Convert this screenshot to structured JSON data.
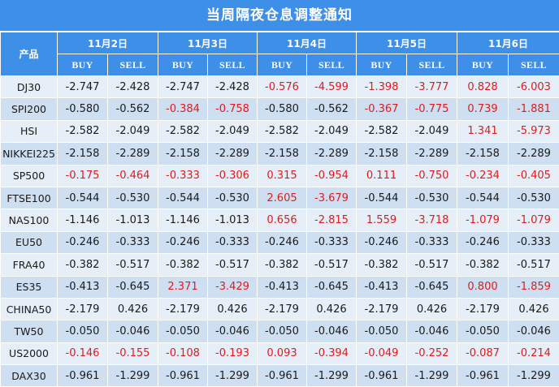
{
  "title": "当周隔夜仓息调整通知",
  "header": {
    "product_label": "产品",
    "buy_label": "BUY",
    "sell_label": "SELL",
    "dates": [
      "11月2日",
      "11月3日",
      "11月4日",
      "11月5日",
      "11月6日"
    ]
  },
  "colors": {
    "header_bg": "#3d8fe8",
    "row_light": "#e6eef8",
    "row_dark": "#cfdff2",
    "highlight_text": "#e31a1a",
    "normal_text": "#1a1a1a"
  },
  "rows": [
    {
      "symbol": "DJ30",
      "values": [
        "-2.747",
        "-2.428",
        "-2.747",
        "-2.428",
        "-0.576",
        "-4.599",
        "-1.398",
        "-3.777",
        "0.828",
        "-6.003"
      ],
      "highlight": [
        false,
        false,
        false,
        false,
        true,
        true,
        true,
        true,
        true,
        true
      ]
    },
    {
      "symbol": "SPI200",
      "values": [
        "-0.580",
        "-0.562",
        "-0.384",
        "-0.758",
        "-0.580",
        "-0.562",
        "-0.367",
        "-0.775",
        "0.739",
        "-1.881"
      ],
      "highlight": [
        false,
        false,
        true,
        true,
        false,
        false,
        true,
        true,
        true,
        true
      ]
    },
    {
      "symbol": "HSI",
      "values": [
        "-2.582",
        "-2.049",
        "-2.582",
        "-2.049",
        "-2.582",
        "-2.049",
        "-2.582",
        "-2.049",
        "1.341",
        "-5.973"
      ],
      "highlight": [
        false,
        false,
        false,
        false,
        false,
        false,
        false,
        false,
        true,
        true
      ]
    },
    {
      "symbol": "NIKKEI225",
      "values": [
        "-2.158",
        "-2.289",
        "-2.158",
        "-2.289",
        "-2.158",
        "-2.289",
        "-2.158",
        "-2.289",
        "-2.158",
        "-2.289"
      ],
      "highlight": [
        false,
        false,
        false,
        false,
        false,
        false,
        false,
        false,
        false,
        false
      ]
    },
    {
      "symbol": "SP500",
      "values": [
        "-0.175",
        "-0.464",
        "-0.333",
        "-0.306",
        "0.315",
        "-0.954",
        "0.111",
        "-0.750",
        "-0.234",
        "-0.405"
      ],
      "highlight": [
        true,
        true,
        true,
        true,
        true,
        true,
        true,
        true,
        true,
        true
      ]
    },
    {
      "symbol": "FTSE100",
      "values": [
        "-0.544",
        "-0.530",
        "-0.544",
        "-0.530",
        "2.605",
        "-3.679",
        "-0.544",
        "-0.530",
        "-0.544",
        "-0.530"
      ],
      "highlight": [
        false,
        false,
        false,
        false,
        true,
        true,
        false,
        false,
        false,
        false
      ]
    },
    {
      "symbol": "NAS100",
      "values": [
        "-1.146",
        "-1.013",
        "-1.146",
        "-1.013",
        "0.656",
        "-2.815",
        "1.559",
        "-3.718",
        "-1.079",
        "-1.079"
      ],
      "highlight": [
        false,
        false,
        false,
        false,
        true,
        true,
        true,
        true,
        true,
        true
      ]
    },
    {
      "symbol": "EU50",
      "values": [
        "-0.246",
        "-0.333",
        "-0.246",
        "-0.333",
        "-0.246",
        "-0.333",
        "-0.246",
        "-0.333",
        "-0.246",
        "-0.333"
      ],
      "highlight": [
        false,
        false,
        false,
        false,
        false,
        false,
        false,
        false,
        false,
        false
      ]
    },
    {
      "symbol": "FRA40",
      "values": [
        "-0.382",
        "-0.517",
        "-0.382",
        "-0.517",
        "-0.382",
        "-0.517",
        "-0.382",
        "-0.517",
        "-0.382",
        "-0.517"
      ],
      "highlight": [
        false,
        false,
        false,
        false,
        false,
        false,
        false,
        false,
        false,
        false
      ]
    },
    {
      "symbol": "ES35",
      "values": [
        "-0.413",
        "-0.645",
        "2.371",
        "-3.429",
        "-0.413",
        "-0.645",
        "-0.413",
        "-0.645",
        "0.800",
        "-1.859"
      ],
      "highlight": [
        false,
        false,
        true,
        true,
        false,
        false,
        false,
        false,
        true,
        true
      ]
    },
    {
      "symbol": "CHINA50",
      "values": [
        "-2.179",
        "0.426",
        "-2.179",
        "0.426",
        "-2.179",
        "0.426",
        "-2.179",
        "0.426",
        "-2.179",
        "0.426"
      ],
      "highlight": [
        false,
        false,
        false,
        false,
        false,
        false,
        false,
        false,
        false,
        false
      ]
    },
    {
      "symbol": "TW50",
      "values": [
        "-0.050",
        "-0.046",
        "-0.050",
        "-0.046",
        "-0.050",
        "-0.046",
        "-0.050",
        "-0.046",
        "-0.050",
        "-0.046"
      ],
      "highlight": [
        false,
        false,
        false,
        false,
        false,
        false,
        false,
        false,
        false,
        false
      ]
    },
    {
      "symbol": "US2000",
      "values": [
        "-0.146",
        "-0.155",
        "-0.108",
        "-0.193",
        "0.093",
        "-0.394",
        "-0.049",
        "-0.252",
        "-0.087",
        "-0.214"
      ],
      "highlight": [
        true,
        true,
        true,
        true,
        true,
        true,
        true,
        true,
        true,
        true
      ]
    },
    {
      "symbol": "DAX30",
      "values": [
        "-0.961",
        "-1.299",
        "-0.961",
        "-1.299",
        "-0.961",
        "-1.299",
        "-0.961",
        "-1.299",
        "-0.961",
        "-1.299"
      ],
      "highlight": [
        false,
        false,
        false,
        false,
        false,
        false,
        false,
        false,
        false,
        false
      ]
    }
  ]
}
